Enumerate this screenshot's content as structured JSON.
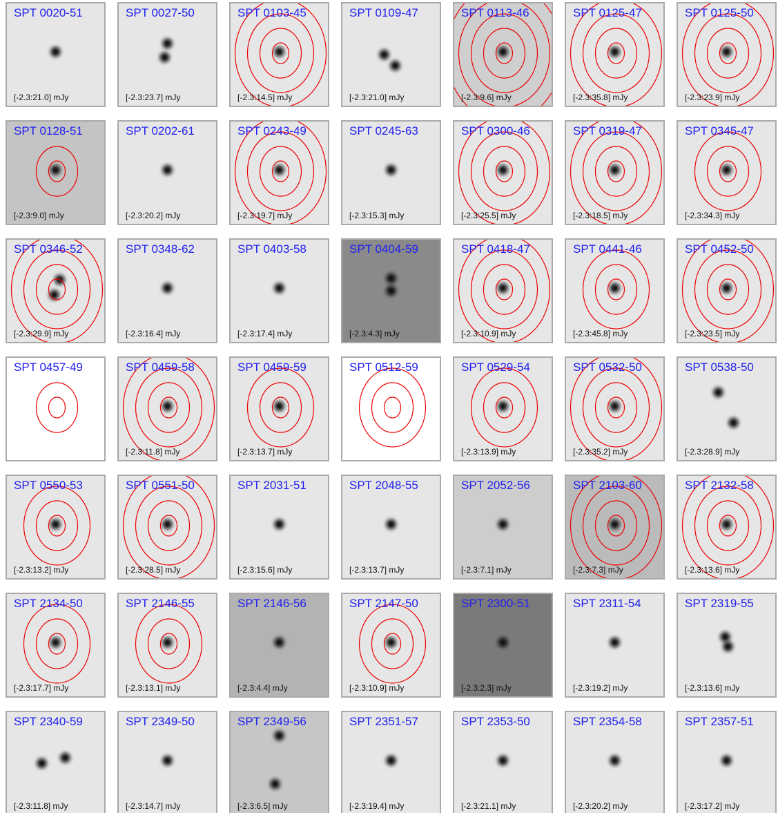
{
  "panels": [
    {
      "name": "SPT 0020-51",
      "range": "[-2.3:21.0] mJy"
    },
    {
      "name": "SPT 0027-50",
      "range": "[-2.3:23.7] mJy"
    },
    {
      "name": "SPT 0103-45",
      "range": "[-2.3:14.5] mJy"
    },
    {
      "name": "SPT 0109-47",
      "range": "[-2.3:21.0] mJy"
    },
    {
      "name": "SPT 0113-46",
      "range": "[-2.3:9.6] mJy"
    },
    {
      "name": "SPT 0125-47",
      "range": "[-2.3:35.8] mJy"
    },
    {
      "name": "SPT 0125-50",
      "range": "[-2.3:23.9] mJy"
    },
    {
      "name": "SPT 0128-51",
      "range": "[-2.3:9.0] mJy"
    },
    {
      "name": "SPT 0202-61",
      "range": "[-2.3:20.2] mJy"
    },
    {
      "name": "SPT 0243-49",
      "range": "[-2.3:19.7] mJy"
    },
    {
      "name": "SPT 0245-63",
      "range": "[-2.3:15.3] mJy"
    },
    {
      "name": "SPT 0300-46",
      "range": "[-2.3:25.5] mJy"
    },
    {
      "name": "SPT 0319-47",
      "range": "[-2.3:18.5] mJy"
    },
    {
      "name": "SPT 0345-47",
      "range": "[-2.3:34.3] mJy"
    },
    {
      "name": "SPT 0346-52",
      "range": "[-2.3:29.9] mJy"
    },
    {
      "name": "SPT 0348-62",
      "range": "[-2.3:16.4] mJy"
    },
    {
      "name": "SPT 0403-58",
      "range": "[-2.3:17.4] mJy"
    },
    {
      "name": "SPT 0404-59",
      "range": "[-2.3:4.3] mJy"
    },
    {
      "name": "SPT 0418-47",
      "range": "[-2.3:10.9] mJy"
    },
    {
      "name": "SPT 0441-46",
      "range": "[-2.3:45.8] mJy"
    },
    {
      "name": "SPT 0452-50",
      "range": "[-2.3:23.5] mJy"
    },
    {
      "name": "SPT 0457-49"
    },
    {
      "name": "SPT 0459-58",
      "range": "[-2.3:11.8] mJy"
    },
    {
      "name": "SPT 0459-59",
      "range": "[-2.3:13.7] mJy"
    },
    {
      "name": "SPT 0512-59"
    },
    {
      "name": "SPT 0529-54",
      "range": "[-2.3:13.9] mJy"
    },
    {
      "name": "SPT 0532-50",
      "range": "[-2.3:35.2] mJy"
    },
    {
      "name": "SPT 0538-50",
      "range": "[-2.3:28.9] mJy"
    },
    {
      "name": "SPT 0550-53",
      "range": "[-2.3:13.2] mJy"
    },
    {
      "name": "SPT 0551-50",
      "range": "[-2.3:28.5] mJy"
    },
    {
      "name": "SPT 2031-51",
      "range": "[-2.3:15.6] mJy"
    },
    {
      "name": "SPT 2048-55",
      "range": "[-2.3:13.7] mJy"
    },
    {
      "name": "SPT 2052-56",
      "range": "[-2.3:7.1] mJy"
    },
    {
      "name": "SPT 2103-60",
      "range": "[-2.3:7.3] mJy"
    },
    {
      "name": "SPT 2132-58",
      "range": "[-2.3:13.6] mJy"
    },
    {
      "name": "SPT 2134-50",
      "range": "[-2.3:17.7] mJy"
    },
    {
      "name": "SPT 2146-55",
      "range": "[-2.3:13.1] mJy"
    },
    {
      "name": "SPT 2146-56",
      "range": "[-2.3:4.4] mJy"
    },
    {
      "name": "SPT 2147-50",
      "range": "[-2.3:10.9] mJy"
    },
    {
      "name": "SPT 2300-51",
      "range": "[-2.3:2.3] mJy"
    },
    {
      "name": "SPT 2311-54",
      "range": "[-2.3:19.2] mJy"
    },
    {
      "name": "SPT 2319-55",
      "range": "[-2.3:13.6] mJy"
    },
    {
      "name": "SPT 2340-59",
      "range": "[-2.3:11.8] mJy"
    },
    {
      "name": "SPT 2349-50",
      "range": "[-2.3:14.7] mJy"
    },
    {
      "name": "SPT 2349-56",
      "range": "[-2.3:6.5] mJy"
    },
    {
      "name": "SPT 2351-57",
      "range": "[-2.3:19.4] mJy"
    },
    {
      "name": "SPT 2353-50",
      "range": "[-2.3:21.1] mJy"
    },
    {
      "name": "SPT 2354-58",
      "range": "[-2.3:20.2] mJy"
    },
    {
      "name": "SPT 2357-51",
      "range": "[-2.3:17.2] mJy"
    }
  ]
}
